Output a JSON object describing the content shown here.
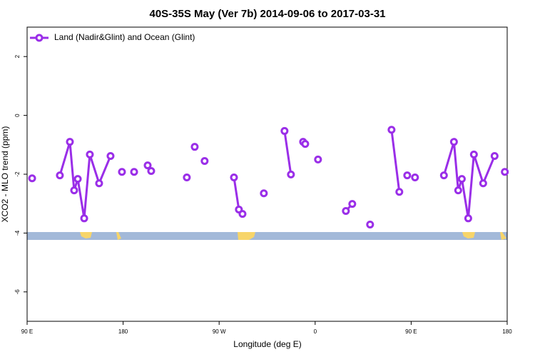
{
  "chart_data": {
    "type": "line",
    "title": "40S-35S May (Ver 7b)   2014-09-06 to 2017-03-31",
    "x_label": "Longitude (deg E)",
    "y_label": "XCO2 - MLO trend (ppm)",
    "xlim": [
      90,
      540
    ],
    "xticks": [
      {
        "value": 90,
        "label": "90 E"
      },
      180,
      {
        "value": 270,
        "label": "90 W"
      },
      {
        "value": 360,
        "label": "0"
      },
      {
        "value": 450,
        "label": "90 E"
      },
      {
        "value": 540,
        "label": "180"
      }
    ],
    "ylim": [
      -7,
      3
    ],
    "yticks": [
      -6,
      -4,
      -2,
      0,
      2
    ],
    "legend": "top-left",
    "x": [
      94.7,
      null,
      120.7,
      130.1,
      134.1,
      137.5,
      143.5,
      148.8,
      157.5,
      168.2,
      null,
      178.9,
      null,
      190.3,
      null,
      203.0,
      206.3,
      null,
      239.7,
      null,
      247.1,
      null,
      256.4,
      null,
      283.9,
      288.5,
      291.9,
      null,
      311.9,
      null,
      331.3,
      337.3,
      null,
      348.7,
      350.7,
      null,
      362.7,
      null,
      388.8,
      394.8,
      null,
      411.5,
      null,
      431.6,
      438.9,
      null,
      446.3,
      null,
      453.6,
      null,
      480.7,
      490.1,
      494.1,
      497.5,
      503.5,
      508.8,
      517.5,
      528.2,
      null,
      537.8
    ],
    "series": [
      {
        "name": "Land (Nadir&Glint) and Ocean (Glint)",
        "color": "#9a2ee8",
        "values": [
          -2.14,
          null,
          -2.04,
          -0.9,
          -2.55,
          -2.16,
          -3.5,
          -1.33,
          -2.31,
          -1.38,
          null,
          -1.92,
          null,
          -1.92,
          null,
          -1.7,
          -1.89,
          null,
          -2.11,
          null,
          -1.07,
          null,
          -1.55,
          null,
          -2.11,
          -3.2,
          -3.35,
          null,
          -2.65,
          null,
          -0.53,
          -2.01,
          null,
          -0.9,
          -0.97,
          null,
          -1.5,
          null,
          -3.25,
          -3.01,
          null,
          -3.71,
          null,
          -0.49,
          -2.6,
          null,
          -2.04,
          null,
          -2.11,
          null,
          -2.04,
          -0.9,
          -2.55,
          -2.16,
          -3.5,
          -1.33,
          -2.31,
          -1.38,
          null,
          -1.92
        ]
      }
    ]
  }
}
